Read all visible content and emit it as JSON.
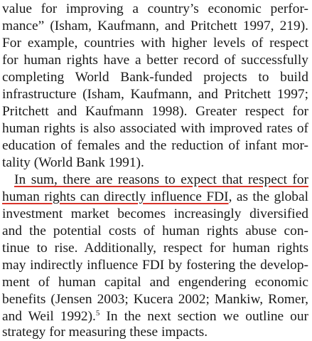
{
  "document": {
    "paragraph_1": {
      "lines": [
        "value for improving a country’s economic perfor-",
        "mance” (Isham, Kaufmann, and Pritchett 1997, 219).",
        "For example, countries with higher levels of respect",
        "for human rights have a better record of successfully",
        "completing World Bank-funded projects to build",
        "infrastructure (Isham, Kaufmann, and Pritchett 1997;",
        "Pritchett and Kaufmann 1998). Greater respect for",
        "human rights is also associated with improved rates of",
        "education of females and the reduction of infant mor-",
        "tality (World Bank 1991)."
      ]
    },
    "paragraph_2": {
      "line_1": "In sum, there are reasons to expect that respect for",
      "line_2_highlight": "human rights can directly influence FDI",
      "line_2_rest": ", as the global",
      "lines": [
        "investment market becomes increasingly diversified",
        "and the potential costs of human rights abuse con-",
        "tinue to rise. Additionally, respect for human rights",
        "may indirectly influence FDI by fostering the develop-",
        "ment of human capital and engendering economic",
        "benefits (Jensen 2003; Kucera 2002; Mankiw, Romer,"
      ],
      "line_9_before_note": "and Weil 1992).",
      "footnote_marker": "5",
      "line_9_after_note": " In the next section we outline our",
      "last_line": "strategy for measuring these impacts."
    },
    "highlight_color": "#d9342b"
  }
}
